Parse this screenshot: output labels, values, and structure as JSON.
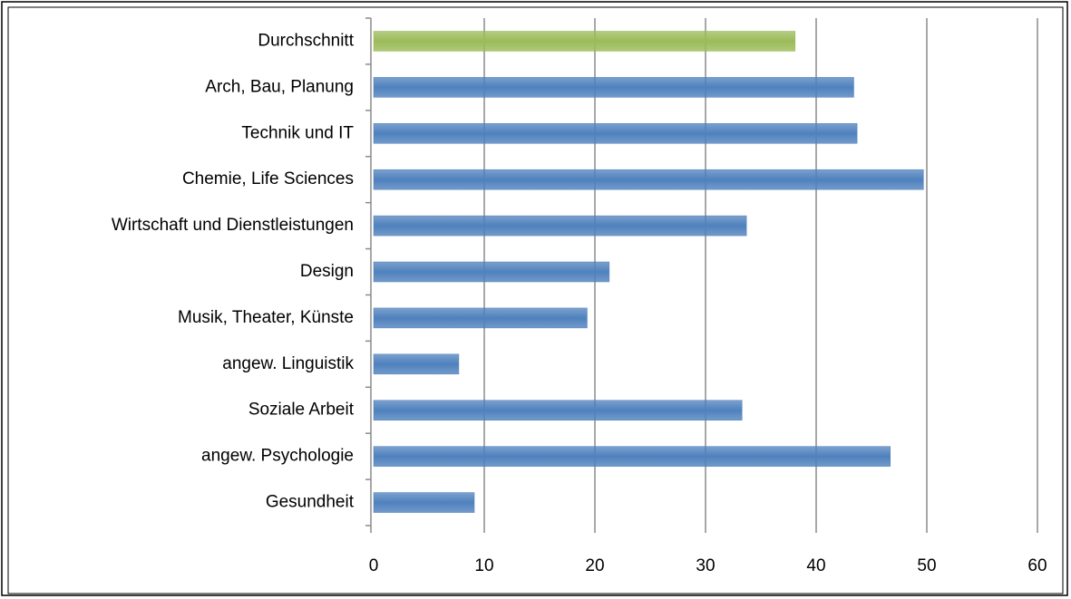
{
  "chart_data": {
    "type": "barh",
    "categories": [
      "Durchschnitt",
      "Arch, Bau, Planung",
      "Technik und IT",
      "Chemie, Life Sciences",
      "Wirtschaft und Dienstleistungen",
      "Design",
      "Musik, Theater, Künste",
      "angew. Linguistik",
      "Soziale Arbeit",
      "angew. Psychologie",
      "Gesundheit"
    ],
    "values": [
      38.1,
      43.4,
      43.7,
      49.7,
      33.7,
      21.3,
      19.3,
      7.7,
      33.3,
      46.7,
      9.1
    ],
    "colors": [
      "#9bbb59",
      "#4f81bd",
      "#4f81bd",
      "#4f81bd",
      "#4f81bd",
      "#4f81bd",
      "#4f81bd",
      "#4f81bd",
      "#4f81bd",
      "#4f81bd",
      "#4f81bd"
    ],
    "xlim": [
      0,
      60
    ],
    "xticks": [
      0,
      10,
      20,
      30,
      40,
      50,
      60
    ],
    "grid": true
  }
}
